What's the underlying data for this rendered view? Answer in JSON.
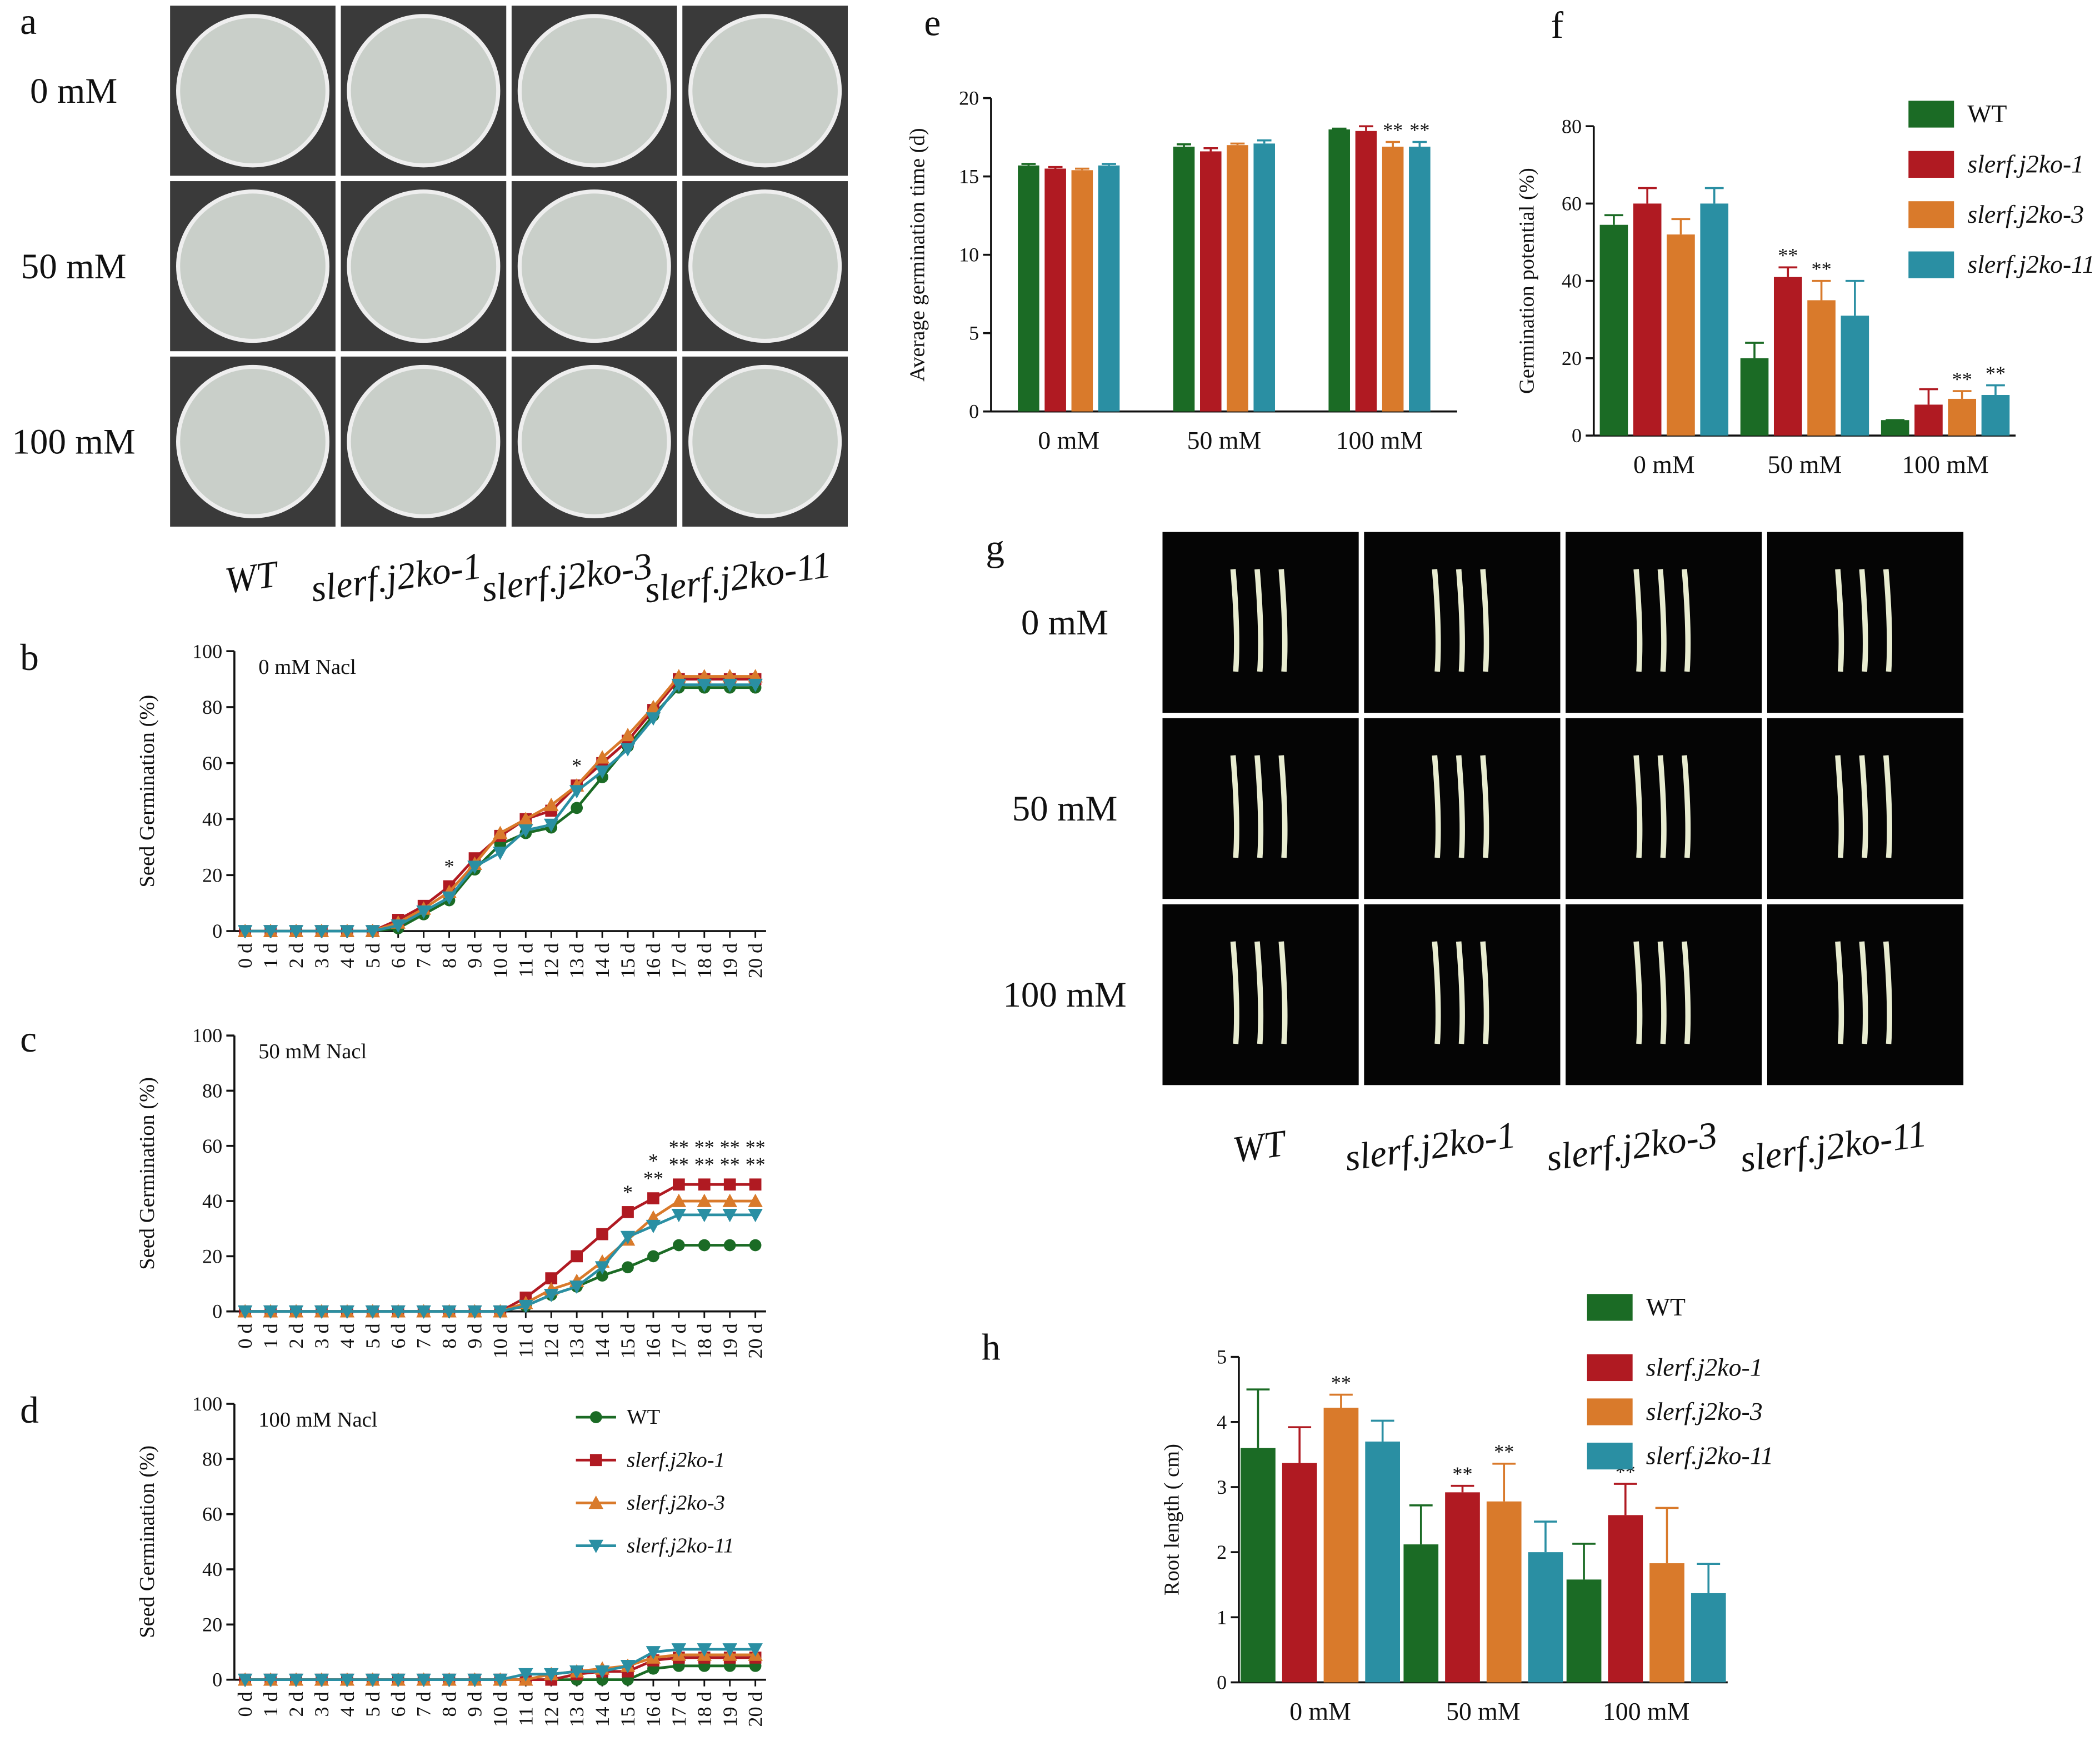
{
  "photo_panels": [
    {
      "panel": "a",
      "rows": [
        "0 mM",
        "50 mM",
        "100 mM"
      ],
      "columns": [
        "WT",
        "slerf.j2ko-1",
        "slerf.j2ko-3",
        "slerf.j2ko-11"
      ]
    },
    {
      "panel": "g",
      "rows": [
        "0 mM",
        "50 mM",
        "100 mM"
      ],
      "columns": [
        "WT",
        "slerf.j2ko-1",
        "slerf.j2ko-3",
        "slerf.j2ko-11"
      ]
    }
  ],
  "chart_data": [
    {
      "type": "line",
      "panel": "b",
      "title": "0 mM Nacl",
      "y_label": "Seed Germination (%)",
      "categories": [
        "0 d",
        "1 d",
        "2 d",
        "3 d",
        "4 d",
        "5 d",
        "6 d",
        "7 d",
        "8 d",
        "9 d",
        "10 d",
        "11 d",
        "12 d",
        "13 d",
        "14 d",
        "15 d",
        "16 d",
        "17 d",
        "18 d",
        "19 d",
        "20 d"
      ],
      "ylim": [
        0,
        100
      ],
      "yticks": [
        0,
        20,
        40,
        60,
        80,
        100
      ],
      "series": [
        {
          "name": "WT",
          "color": "#1b6b25",
          "marker": "circle",
          "values": [
            0,
            0,
            0,
            0,
            0,
            0,
            1,
            6,
            11,
            22,
            31,
            35,
            37,
            44,
            55,
            66,
            77,
            87,
            87,
            87,
            87
          ]
        },
        {
          "name": "slerf.j2ko-1",
          "color": "#b01a22",
          "marker": "square",
          "values": [
            0,
            0,
            0,
            0,
            0,
            0,
            4,
            9,
            16,
            26,
            34,
            40,
            43,
            52,
            60,
            68,
            79,
            90,
            90,
            90,
            90
          ]
        },
        {
          "name": "slerf.j2ko-3",
          "color": "#d97a2b",
          "marker": "triangle-up",
          "values": [
            0,
            0,
            0,
            0,
            0,
            0,
            3,
            8,
            14,
            24,
            35,
            40,
            45,
            52,
            62,
            70,
            80,
            91,
            91,
            91,
            91
          ]
        },
        {
          "name": "slerf.j2ko-11",
          "color": "#2a8fa3",
          "marker": "triangle-down",
          "values": [
            0,
            0,
            0,
            0,
            0,
            0,
            2,
            7,
            12,
            23,
            28,
            36,
            38,
            50,
            57,
            65,
            76,
            88,
            88,
            88,
            88
          ]
        }
      ],
      "annotations": [
        {
          "category": "8 d",
          "text": [
            "*"
          ]
        },
        {
          "category": "13 d",
          "text": [
            "*"
          ]
        }
      ]
    },
    {
      "type": "line",
      "panel": "c",
      "title": "50 mM Nacl",
      "y_label": "Seed Germination (%)",
      "categories": [
        "0 d",
        "1 d",
        "2 d",
        "3 d",
        "4 d",
        "5 d",
        "6 d",
        "7 d",
        "8 d",
        "9 d",
        "10 d",
        "11 d",
        "12 d",
        "13 d",
        "14 d",
        "15 d",
        "16 d",
        "17 d",
        "18 d",
        "19 d",
        "20 d"
      ],
      "ylim": [
        0,
        100
      ],
      "yticks": [
        0,
        20,
        40,
        60,
        80,
        100
      ],
      "series": [
        {
          "name": "WT",
          "color": "#1b6b25",
          "marker": "circle",
          "values": [
            0,
            0,
            0,
            0,
            0,
            0,
            0,
            0,
            0,
            0,
            0,
            2,
            6,
            9,
            13,
            16,
            20,
            24,
            24,
            24,
            24
          ]
        },
        {
          "name": "slerf.j2ko-1",
          "color": "#b01a22",
          "marker": "square",
          "values": [
            0,
            0,
            0,
            0,
            0,
            0,
            0,
            0,
            0,
            0,
            0,
            5,
            12,
            20,
            28,
            36,
            41,
            46,
            46,
            46,
            46
          ]
        },
        {
          "name": "slerf.j2ko-3",
          "color": "#d97a2b",
          "marker": "triangle-up",
          "values": [
            0,
            0,
            0,
            0,
            0,
            0,
            0,
            0,
            0,
            0,
            0,
            3,
            8,
            11,
            18,
            26,
            34,
            40,
            40,
            40,
            40
          ]
        },
        {
          "name": "slerf.j2ko-11",
          "color": "#2a8fa3",
          "marker": "triangle-down",
          "values": [
            0,
            0,
            0,
            0,
            0,
            0,
            0,
            0,
            0,
            0,
            0,
            2,
            6,
            9,
            16,
            27,
            31,
            35,
            35,
            35,
            35
          ]
        }
      ],
      "annotations": [
        {
          "category": "15 d",
          "text": [
            "*"
          ]
        },
        {
          "category": "16 d",
          "text": [
            "*",
            "**"
          ]
        },
        {
          "category": "17 d",
          "text": [
            "**",
            "**"
          ]
        },
        {
          "category": "18 d",
          "text": [
            "**",
            "**"
          ]
        },
        {
          "category": "19 d",
          "text": [
            "**",
            "**"
          ]
        },
        {
          "category": "20 d",
          "text": [
            "**",
            "**"
          ]
        }
      ]
    },
    {
      "type": "line",
      "panel": "d",
      "title": "100 mM Nacl",
      "y_label": "Seed Germination (%)",
      "categories": [
        "0 d",
        "1 d",
        "2 d",
        "3 d",
        "4 d",
        "5 d",
        "6 d",
        "7 d",
        "8 d",
        "9 d",
        "10 d",
        "11 d",
        "12 d",
        "13 d",
        "14 d",
        "15 d",
        "16 d",
        "17 d",
        "18 d",
        "19 d",
        "20 d"
      ],
      "ylim": [
        0,
        100
      ],
      "yticks": [
        0,
        20,
        40,
        60,
        80,
        100
      ],
      "legend": "top-right",
      "series": [
        {
          "name": "WT",
          "color": "#1b6b25",
          "marker": "circle",
          "values": [
            0,
            0,
            0,
            0,
            0,
            0,
            0,
            0,
            0,
            0,
            0,
            0,
            0,
            0,
            0,
            0,
            4,
            5,
            5,
            5,
            5
          ]
        },
        {
          "name": "slerf.j2ko-1",
          "color": "#b01a22",
          "marker": "square",
          "values": [
            0,
            0,
            0,
            0,
            0,
            0,
            0,
            0,
            0,
            0,
            0,
            0,
            0,
            2,
            3,
            3,
            7,
            8,
            8,
            8,
            8
          ]
        },
        {
          "name": "slerf.j2ko-3",
          "color": "#d97a2b",
          "marker": "triangle-up",
          "values": [
            0,
            0,
            0,
            0,
            0,
            0,
            0,
            0,
            0,
            0,
            0,
            0,
            2,
            3,
            4,
            5,
            8,
            9,
            9,
            9,
            9
          ]
        },
        {
          "name": "slerf.j2ko-11",
          "color": "#2a8fa3",
          "marker": "triangle-down",
          "values": [
            0,
            0,
            0,
            0,
            0,
            0,
            0,
            0,
            0,
            0,
            0,
            2,
            2,
            3,
            3,
            5,
            10,
            11,
            11,
            11,
            11
          ]
        }
      ]
    },
    {
      "type": "bar",
      "panel": "e",
      "y_label": "Average germination time (d)",
      "categories": [
        "0 mM",
        "50 mM",
        "100 mM"
      ],
      "ylim": [
        0,
        20
      ],
      "yticks": [
        0,
        5,
        10,
        15,
        20
      ],
      "series": [
        {
          "name": "WT",
          "color": "#1b6b25",
          "values": [
            15.7,
            16.9,
            18.0
          ],
          "errors": [
            0.1,
            0.15,
            0.05
          ],
          "significance": [
            null,
            null,
            null
          ]
        },
        {
          "name": "slerf.j2ko-1",
          "color": "#b01a22",
          "values": [
            15.5,
            16.6,
            17.9
          ],
          "errors": [
            0.1,
            0.2,
            0.3
          ],
          "significance": [
            null,
            null,
            null
          ]
        },
        {
          "name": "slerf.j2ko-3",
          "color": "#d97a2b",
          "values": [
            15.4,
            17.0,
            16.9
          ],
          "errors": [
            0.1,
            0.1,
            0.3
          ],
          "significance": [
            null,
            null,
            "**"
          ]
        },
        {
          "name": "slerf.j2ko-11",
          "color": "#2a8fa3",
          "values": [
            15.7,
            17.1,
            16.9
          ],
          "errors": [
            0.1,
            0.2,
            0.3
          ],
          "significance": [
            null,
            null,
            "**"
          ]
        }
      ]
    },
    {
      "type": "bar",
      "panel": "f",
      "y_label": "Germination potential (%)",
      "categories": [
        "0 mM",
        "50 mM",
        "100 mM"
      ],
      "ylim": [
        0,
        80
      ],
      "yticks": [
        0,
        20,
        40,
        60,
        80
      ],
      "legend": "right",
      "series": [
        {
          "name": "WT",
          "color": "#1b6b25",
          "values": [
            54.5,
            20,
            4
          ],
          "errors": [
            2.5,
            4,
            0
          ],
          "significance": [
            null,
            null,
            null
          ]
        },
        {
          "name": "slerf.j2ko-1",
          "color": "#b01a22",
          "values": [
            60,
            41,
            8
          ],
          "errors": [
            4,
            2.5,
            4
          ],
          "significance": [
            null,
            "**",
            null
          ]
        },
        {
          "name": "slerf.j2ko-3",
          "color": "#d97a2b",
          "values": [
            52,
            35,
            9.5
          ],
          "errors": [
            4,
            5,
            2
          ],
          "significance": [
            null,
            "**",
            "**"
          ]
        },
        {
          "name": "slerf.j2ko-11",
          "color": "#2a8fa3",
          "values": [
            60,
            31,
            10.5
          ],
          "errors": [
            4,
            9,
            2.5
          ],
          "significance": [
            null,
            null,
            "**"
          ]
        }
      ]
    },
    {
      "type": "bar",
      "panel": "h",
      "y_label": "Root length ( cm)",
      "categories": [
        "0 mM",
        "50 mM",
        "100 mM"
      ],
      "ylim": [
        0,
        5
      ],
      "yticks": [
        0,
        1,
        2,
        3,
        4,
        5
      ],
      "legend": "top-right",
      "series": [
        {
          "name": "WT",
          "color": "#1b6b25",
          "values": [
            3.6,
            2.12,
            1.58
          ],
          "errors": [
            0.9,
            0.6,
            0.55
          ],
          "significance": [
            null,
            null,
            null
          ]
        },
        {
          "name": "slerf.j2ko-1",
          "color": "#b01a22",
          "values": [
            3.37,
            2.92,
            2.57
          ],
          "errors": [
            0.55,
            0.1,
            0.48
          ],
          "significance": [
            null,
            "**",
            "**"
          ]
        },
        {
          "name": "slerf.j2ko-3",
          "color": "#d97a2b",
          "values": [
            4.22,
            2.78,
            1.83
          ],
          "errors": [
            0.2,
            0.58,
            0.85
          ],
          "significance": [
            "**",
            "**",
            null
          ]
        },
        {
          "name": "slerf.j2ko-11",
          "color": "#2a8fa3",
          "values": [
            3.7,
            2.0,
            1.37
          ],
          "errors": [
            0.32,
            0.47,
            0.45
          ],
          "significance": [
            null,
            null,
            null
          ]
        }
      ]
    }
  ]
}
